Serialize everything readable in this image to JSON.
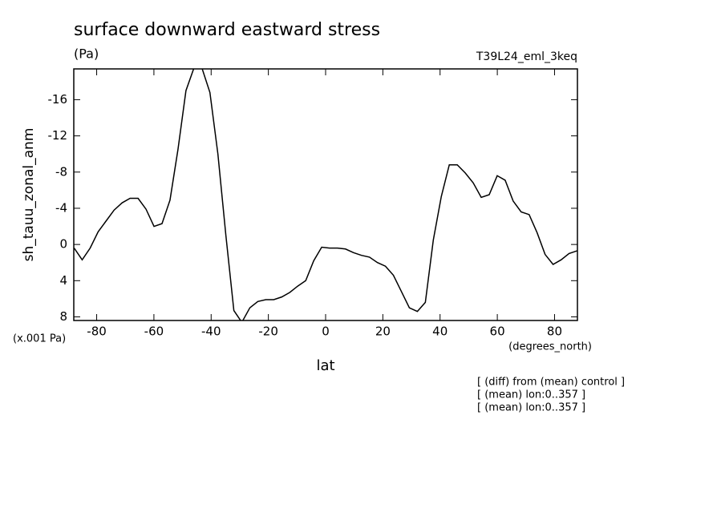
{
  "chart_data": {
    "type": "line",
    "title": "surface downward eastward stress",
    "subtitle": "(Pa)",
    "run_label": "T39L24_eml_3keq",
    "y_label": "sh_tauu_zonal_anm",
    "y_unit_label": "(x.001 Pa)",
    "x_label": "lat",
    "x_unit_label": "(degrees_north)",
    "notes": [
      "[ (diff) from (mean) control ]",
      "[ (mean) lon:0..357 ]",
      "[ (mean) lon:0..357 ]"
    ],
    "x": [
      -87.86,
      -85.07,
      -82.28,
      -79.49,
      -76.7,
      -73.91,
      -71.12,
      -68.33,
      -65.54,
      -62.75,
      -59.96,
      -57.17,
      -54.38,
      -51.59,
      -48.8,
      -46.01,
      -43.22,
      -40.43,
      -37.64,
      -34.85,
      -32.06,
      -29.27,
      -26.48,
      -23.69,
      -20.9,
      -18.11,
      -15.32,
      -12.53,
      -9.74,
      -6.95,
      -4.16,
      -1.37,
      1.37,
      4.16,
      6.95,
      9.74,
      12.53,
      15.32,
      18.11,
      20.9,
      23.69,
      26.48,
      29.27,
      32.06,
      34.85,
      37.64,
      40.43,
      43.22,
      46.01,
      48.8,
      51.59,
      54.38,
      57.17,
      59.96,
      62.75,
      65.54,
      68.33,
      71.12,
      73.91,
      76.7,
      79.49,
      82.28,
      85.07,
      87.86
    ],
    "series": [
      {
        "color": "#000000",
        "values": [
          0.4,
          1.7,
          0.4,
          -1.4,
          -2.6,
          -3.8,
          -4.6,
          -5.1,
          -5.1,
          -3.9,
          -2.0,
          -2.3,
          -4.9,
          -10.5,
          -17,
          -19.5,
          -19.5,
          -16.8,
          -10,
          -1,
          7.3,
          8.6,
          7,
          6.3,
          6.1,
          6.1,
          5.8,
          5.3,
          4.6,
          4,
          1.8,
          0.3,
          0.4,
          0.4,
          0.5,
          0.9,
          1.2,
          1.4,
          2,
          2.4,
          3.4,
          5.2,
          7,
          7.4,
          6.4,
          -0.5,
          -5.3,
          -8.8,
          -8.8,
          -7.9,
          -6.8,
          -5.2,
          -5.5,
          -7.6,
          -7.1,
          -4.8,
          -3.6,
          -3.3,
          -1.3,
          1.1,
          2.2,
          1.7,
          1.0,
          0.7
        ]
      }
    ],
    "xlim": [
      -88,
      88
    ],
    "xticks": [
      -80,
      -60,
      -40,
      -20,
      0,
      20,
      40,
      60,
      80
    ],
    "ylim": [
      8.4,
      -19.4
    ],
    "yticks": [
      8,
      4,
      0,
      -4,
      -8,
      -12,
      -16
    ]
  }
}
